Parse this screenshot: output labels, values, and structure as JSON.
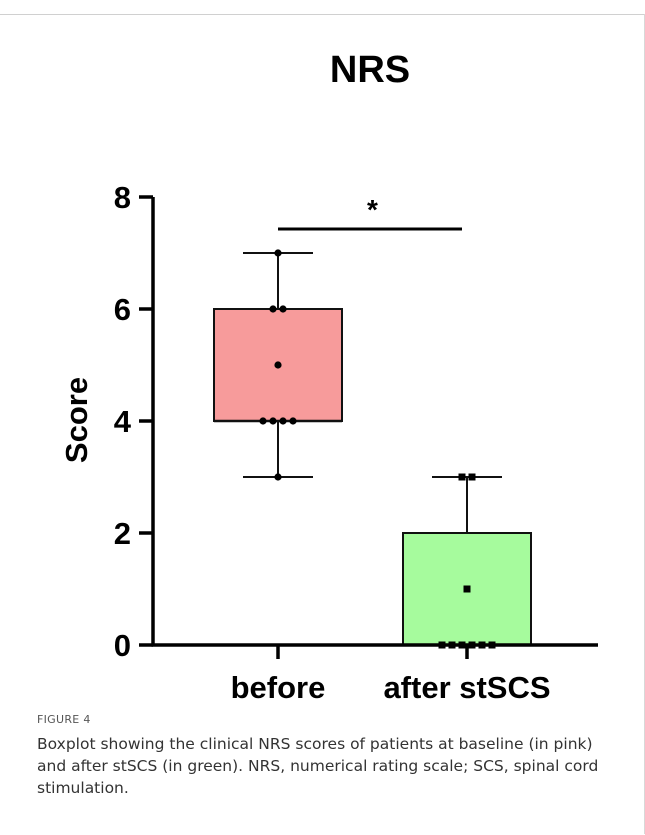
{
  "chart_data": {
    "type": "boxplot",
    "title": "NRS",
    "ylabel": "Score",
    "xlabel": "",
    "ylim": [
      0,
      8
    ],
    "yticks": [
      0,
      2,
      4,
      6,
      8
    ],
    "grid": false,
    "categories": [
      "before",
      "after stSCS"
    ],
    "boxes": [
      {
        "category": "before",
        "color": "#f79b9b",
        "min": 3,
        "q1": 4,
        "median": 4,
        "q3": 6,
        "max": 7,
        "points": [
          7,
          6,
          6,
          5,
          4,
          4,
          4,
          4,
          3
        ],
        "marker": "circle"
      },
      {
        "category": "after stSCS",
        "color": "#a6fb9d",
        "min": 0,
        "q1": 0,
        "median": 0,
        "q3": 2,
        "max": 3,
        "points": [
          3,
          3,
          1,
          0,
          0,
          0,
          0,
          0,
          0
        ],
        "marker": "square"
      }
    ],
    "significance": {
      "between": [
        "before",
        "after stSCS"
      ],
      "label": "*"
    }
  },
  "caption": {
    "figure_label": "FIGURE 4",
    "text": "Boxplot showing the clinical NRS scores of patients at baseline (in pink) and after stSCS (in green). NRS, numerical rating scale; SCS, spinal cord stimulation."
  }
}
